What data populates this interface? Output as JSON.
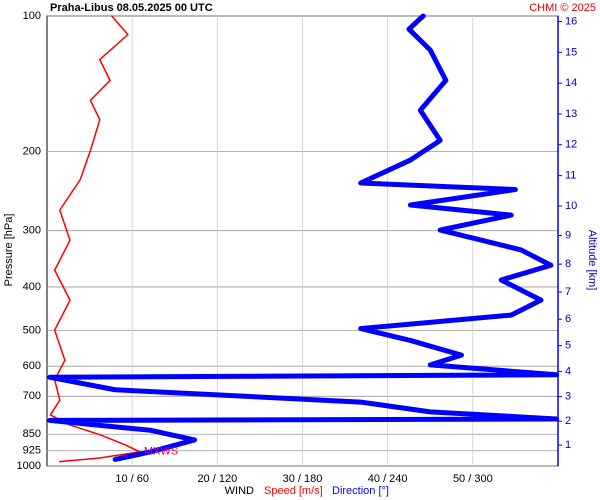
{
  "chart_data": {
    "type": "line",
    "title": "Praha-Libus    08.05.2025 00 UTC",
    "source": "CHMI © 2025",
    "ylabel": "Pressure [hPa]",
    "y2label": "Altitude [km]",
    "xlabel": "WIND",
    "annotation": "MXWS",
    "ylim": [
      100,
      1000
    ],
    "log_y": true,
    "yticks": [
      100,
      200,
      300,
      400,
      500,
      600,
      700,
      850,
      925,
      1000
    ],
    "y2ticks": [
      1,
      2,
      3,
      4,
      5,
      6,
      7,
      8,
      9,
      10,
      11,
      12,
      13,
      14,
      15,
      16
    ],
    "xlim": [
      0,
      60
    ],
    "xticks": [
      {
        "value": 10,
        "label": "10 / 60"
      },
      {
        "value": 20,
        "label": "20 / 120"
      },
      {
        "value": 30,
        "label": "30 / 180"
      },
      {
        "value": 40,
        "label": "40 / 240"
      },
      {
        "value": 50,
        "label": "50 / 300"
      }
    ],
    "grid": true,
    "series": [
      {
        "name": "Speed [m/s]",
        "color": "#ff0000",
        "xlim": [
          0,
          60
        ],
        "pressure": [
          100,
          110,
          125,
          139,
          154,
          170,
          199,
          231,
          270,
          315,
          367,
          428,
          499,
          582,
          643,
          714,
          770,
          811,
          852,
          898,
          930,
          960,
          978
        ],
        "values": [
          7.6,
          9.5,
          6.2,
          7.4,
          5.1,
          6.2,
          5.1,
          3.9,
          1.5,
          2.7,
          0.9,
          2.7,
          0.9,
          2.1,
          0.9,
          1.5,
          0.4,
          2.7,
          6.2,
          9.2,
          10.9,
          6.2,
          1.5
        ]
      },
      {
        "name": "Direction [°]",
        "color": "#0000ff",
        "xlim": [
          0,
          360
        ],
        "pressure": [
          100,
          107,
          119,
          139,
          162,
          189,
          209,
          235,
          243,
          263,
          277,
          299,
          331,
          358,
          386,
          428,
          462,
          495,
          526,
          567,
          596,
          627,
          635,
          677,
          721,
          758,
          786,
          792,
          833,
          875,
          930,
          967
        ],
        "values": [
          265,
          255,
          270,
          281,
          263,
          277,
          256,
          221,
          330,
          256,
          327,
          277,
          334,
          355,
          320,
          348,
          327,
          221,
          256,
          292,
          270,
          359,
          2,
          48,
          221,
          270,
          359,
          2,
          73,
          104,
          73,
          48
        ]
      }
    ]
  }
}
